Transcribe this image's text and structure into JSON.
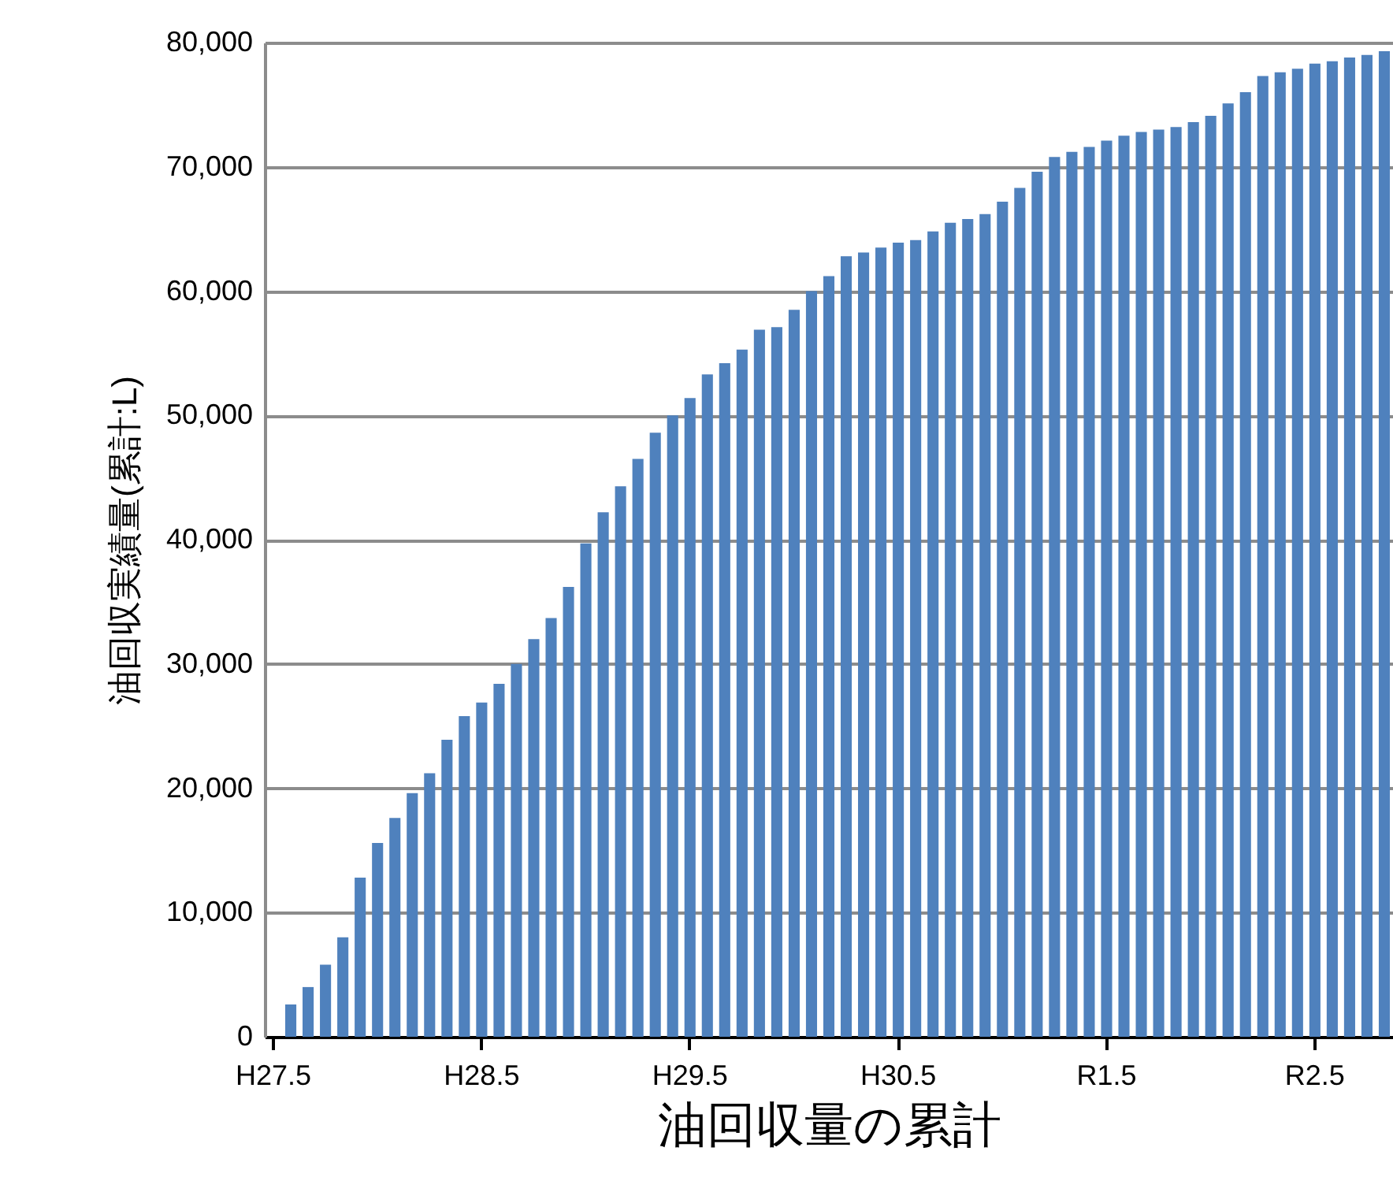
{
  "chart_data": {
    "type": "bar",
    "xlabel": "油回収量の累計",
    "ylabel": "油回収実績量(累計:L)",
    "categories": [
      "H27.5",
      null,
      null,
      null,
      null,
      null,
      null,
      null,
      null,
      null,
      null,
      null,
      "H28.5",
      null,
      null,
      null,
      null,
      null,
      null,
      null,
      null,
      null,
      null,
      null,
      "H29.5",
      null,
      null,
      null,
      null,
      null,
      null,
      null,
      null,
      null,
      null,
      null,
      "H30.5",
      null,
      null,
      null,
      null,
      null,
      null,
      null,
      null,
      null,
      null,
      null,
      "R1.5",
      null,
      null,
      null,
      null,
      null,
      null,
      null,
      null,
      null,
      null,
      null,
      "R2.5",
      null,
      null,
      null,
      null
    ],
    "values": [
      0,
      2600,
      4000,
      5800,
      8000,
      12800,
      15600,
      17600,
      19600,
      21200,
      23900,
      25800,
      26900,
      28400,
      30000,
      32000,
      33700,
      36200,
      39700,
      42200,
      44300,
      46500,
      48600,
      50000,
      51400,
      53300,
      54200,
      55300,
      56900,
      57100,
      58500,
      60000,
      61200,
      62800,
      63100,
      63500,
      63900,
      64100,
      64800,
      65500,
      65800,
      66200,
      67200,
      68300,
      69600,
      70800,
      71200,
      71600,
      72100,
      72500,
      72800,
      73000,
      73200,
      73600,
      74100,
      75100,
      76000,
      77300,
      77600,
      77900,
      78300,
      78500,
      78800,
      79000,
      79300
    ],
    "color": "#4f81bd",
    "ylim": [
      0,
      80000
    ],
    "yticks": [
      0,
      {
        "value": 10000,
        "label": "10,000"
      },
      {
        "value": 20000,
        "label": "20,000"
      },
      {
        "value": 30000,
        "label": "30,000"
      },
      {
        "value": 40000,
        "label": "40,000"
      },
      {
        "value": 50000,
        "label": "50,000"
      },
      {
        "value": 60000,
        "label": "60,000"
      },
      {
        "value": 70000,
        "label": "70,000"
      },
      {
        "value": 80000,
        "label": "80,000"
      }
    ],
    "grid": "y"
  }
}
